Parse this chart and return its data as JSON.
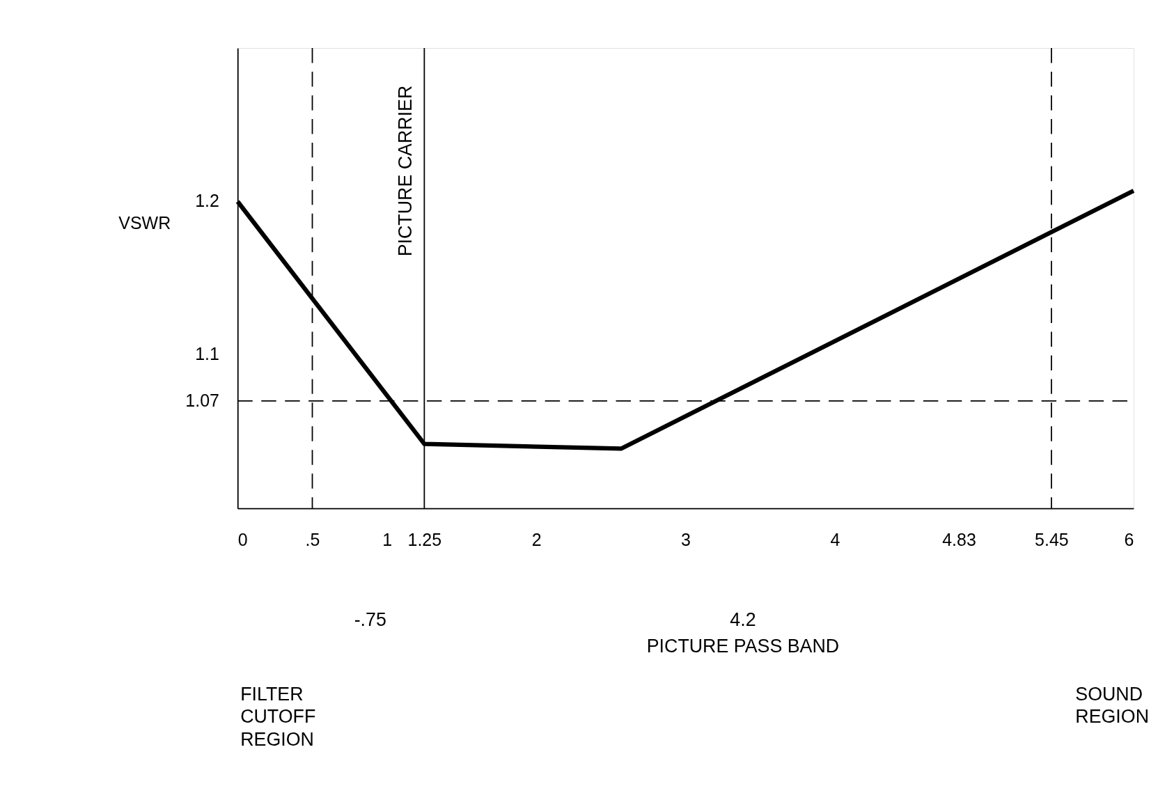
{
  "chart_data": {
    "type": "line",
    "ylabel": "VSWR",
    "x": [
      0,
      1.25,
      2.57,
      6
    ],
    "series": [
      {
        "color": "#000000",
        "values": [
          1.2,
          1.042,
          1.039,
          1.207
        ]
      }
    ],
    "xlim": [
      0,
      6
    ],
    "ylim": [
      1.0,
      1.3
    ],
    "xticks": [
      0,
      {
        "value": 0.5,
        "label": ".5"
      },
      1,
      1.25,
      2,
      3,
      4,
      4.83,
      5.45,
      6
    ],
    "yticks": [
      1.07,
      1.1,
      1.2
    ],
    "ref_lines": [
      {
        "axis": "x",
        "value": 0.5,
        "line_style": "dashed"
      },
      {
        "axis": "x",
        "value": 1.25,
        "label": "PICTURE CARRIER",
        "line_style": "solid"
      },
      {
        "axis": "x",
        "value": 5.45,
        "line_style": "dashed"
      },
      {
        "axis": "y",
        "value": 1.07,
        "line_style": "dashed"
      }
    ],
    "annotations": [
      "-.75",
      "4.2",
      "PICTURE PASS BAND",
      "FILTER CUTOFF REGION",
      "SOUND REGION"
    ],
    "grid": false,
    "marker": "none",
    "line_style": "solid"
  }
}
